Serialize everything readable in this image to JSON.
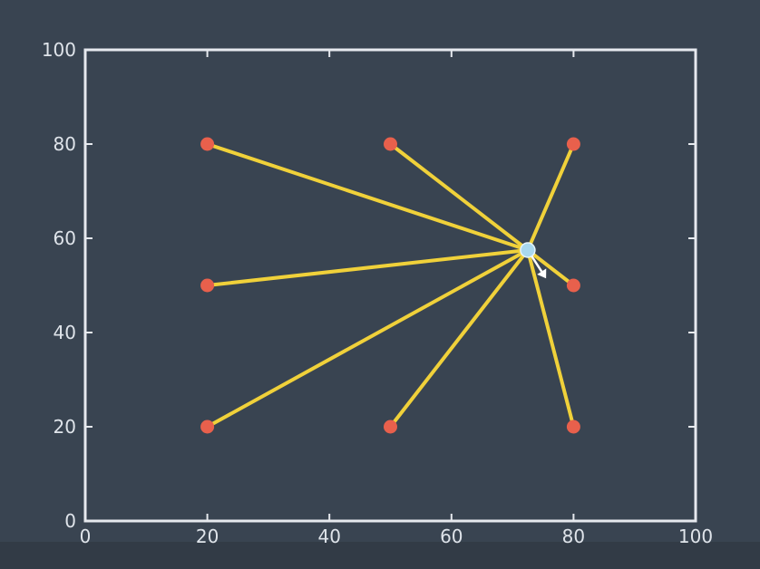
{
  "chart_data": {
    "type": "scatter",
    "title": "",
    "xlabel": "",
    "ylabel": "",
    "xlim": [
      0,
      100
    ],
    "ylim": [
      0,
      100
    ],
    "grid": false,
    "x_ticks": [
      "0",
      "20",
      "40",
      "60",
      "80",
      "100"
    ],
    "y_ticks": [
      "0",
      "20",
      "40",
      "60",
      "80",
      "100"
    ],
    "landmarks": [
      {
        "x": 20,
        "y": 80
      },
      {
        "x": 50,
        "y": 80
      },
      {
        "x": 80,
        "y": 80
      },
      {
        "x": 20,
        "y": 50
      },
      {
        "x": 80,
        "y": 50
      },
      {
        "x": 20,
        "y": 20
      },
      {
        "x": 50,
        "y": 20
      },
      {
        "x": 80,
        "y": 20
      }
    ],
    "robot": {
      "x": 72.5,
      "y": 57.5
    },
    "heading_to": {
      "x": 75.5,
      "y": 51.5
    },
    "colors": {
      "background": "#394451",
      "axes": "#e6e9ee",
      "landmark": "#e8604c",
      "robot": "#a9d8ee",
      "ray": "#f0d13a",
      "heading": "#ffffff"
    }
  }
}
